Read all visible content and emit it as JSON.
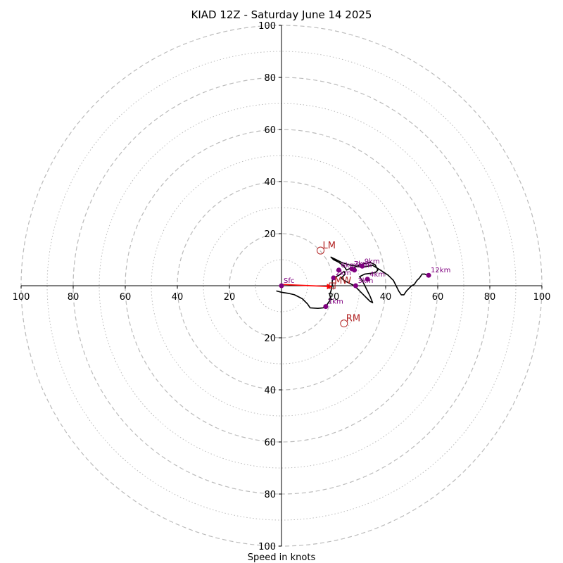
{
  "chart_data": {
    "type": "line",
    "title": "KIAD 12Z - Saturday June 14 2025",
    "xlabel": "Speed in knots",
    "ylabel": "",
    "range": 100,
    "major_rings": [
      20,
      40,
      60,
      80,
      100
    ],
    "minor_rings": [
      10,
      30,
      50,
      70,
      90
    ],
    "tick_values": [
      20,
      40,
      60,
      80,
      100
    ],
    "colors": {
      "axes": "#000000",
      "grid": "#bbbbbb",
      "trace": "#000000",
      "height_points": "#800080",
      "motion": "#b22222",
      "shear_vector": "#ff0000"
    },
    "hodograph_trace": [
      [
        -2,
        -2
      ],
      [
        0,
        -2.5
      ],
      [
        3,
        -3
      ],
      [
        5,
        -3.5
      ],
      [
        8,
        -5
      ],
      [
        10,
        -7
      ],
      [
        11,
        -8.5
      ],
      [
        14,
        -8.7
      ],
      [
        16,
        -8.5
      ],
      [
        17,
        -8
      ],
      [
        19,
        -5
      ],
      [
        18.5,
        -3.5
      ],
      [
        19,
        -2
      ],
      [
        19.5,
        0
      ],
      [
        19.5,
        2
      ],
      [
        20,
        3
      ],
      [
        22,
        4
      ],
      [
        24,
        5.5
      ],
      [
        24.5,
        4.5
      ],
      [
        23,
        3
      ],
      [
        24,
        2
      ],
      [
        26,
        1
      ],
      [
        28,
        0
      ],
      [
        30,
        -2
      ],
      [
        32,
        -4
      ],
      [
        33,
        -5
      ],
      [
        34,
        -6
      ],
      [
        35,
        -6.5
      ],
      [
        34,
        -4
      ],
      [
        33,
        -2
      ],
      [
        32,
        0
      ],
      [
        31,
        2
      ],
      [
        30,
        3.5
      ],
      [
        32,
        4.5
      ],
      [
        36,
        5
      ],
      [
        37,
        6
      ],
      [
        36,
        8
      ],
      [
        34,
        9
      ],
      [
        30,
        8
      ],
      [
        28,
        7
      ],
      [
        26,
        6.5
      ],
      [
        25,
        6
      ],
      [
        24,
        7.5
      ],
      [
        22,
        9
      ],
      [
        20,
        10
      ],
      [
        19,
        11
      ],
      [
        21,
        10
      ],
      [
        23,
        9
      ],
      [
        26,
        8
      ],
      [
        29,
        7.5
      ],
      [
        31,
        7
      ],
      [
        33,
        7.5
      ],
      [
        35,
        7.8
      ],
      [
        38,
        6
      ],
      [
        41,
        4
      ],
      [
        43,
        2
      ],
      [
        44,
        0
      ],
      [
        45,
        -2
      ],
      [
        46,
        -3.5
      ],
      [
        47,
        -3.5
      ],
      [
        48,
        -2
      ],
      [
        49,
        -1
      ],
      [
        50,
        0
      ],
      [
        51,
        0.5
      ],
      [
        52,
        2
      ],
      [
        53,
        3
      ],
      [
        54,
        4.5
      ],
      [
        55,
        4.5
      ],
      [
        56,
        4
      ]
    ],
    "height_points": [
      {
        "label": "Sfc",
        "x": 0,
        "y": 0
      },
      {
        "label": "1km",
        "x": 17,
        "y": -8
      },
      {
        "label": "2km",
        "x": 20,
        "y": 3
      },
      {
        "label": "3km",
        "x": 28.5,
        "y": 0
      },
      {
        "label": "4km",
        "x": 33,
        "y": 2.5
      },
      {
        "label": "6km",
        "x": 22,
        "y": 6
      },
      {
        "label": "7km",
        "x": 27,
        "y": 6.5
      },
      {
        "label": "8km",
        "x": 28,
        "y": 6
      },
      {
        "label": "9km",
        "x": 31,
        "y": 7.5
      },
      {
        "label": "12km",
        "x": 56.5,
        "y": 4
      }
    ],
    "storm_motion": [
      {
        "label": "LM",
        "x": 15,
        "y": 13.5,
        "marker": "circle"
      },
      {
        "label": "RM",
        "x": 24,
        "y": -14.5,
        "marker": "circle"
      },
      {
        "label": "MW",
        "x": 19.5,
        "y": 0,
        "marker": "square"
      }
    ],
    "shear_vector": {
      "from": [
        0,
        0.5
      ],
      "to": [
        18,
        -0.3
      ]
    }
  }
}
